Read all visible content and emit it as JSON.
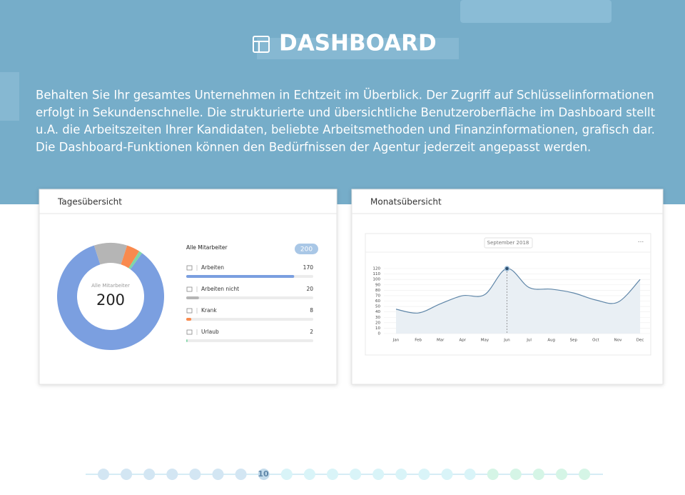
{
  "header": {
    "title": "DASHBOARD",
    "intro": [
      "Behalten Sie Ihr gesamtes Unternehmen in Echtzeit im Überblick. Der Zugriff auf Schlüsselinformationen",
      "erfolgt in Sekundenschnelle. Die strukturierte und übersichtliche Benutzeroberfläche im Dashboard stellt",
      "u.A. die Arbeitszeiten Ihrer Kandidaten, beliebte Arbeitsmethoden und Finanzinformationen, grafisch dar.",
      "Die Dashboard-Funktionen können den Bedürfnissen der Agentur jederzeit angepasst werden."
    ]
  },
  "day_card": {
    "title": "Tagesübersicht",
    "center_label": "Alle Mitarbeiter",
    "total_label": "Alle Mitarbeiter",
    "total": 200,
    "items": [
      {
        "name": "Arbeiten",
        "value": 170,
        "color": "#7b9fe0"
      },
      {
        "name": "Arbeiten nicht",
        "value": 20,
        "color": "#b5b5b5"
      },
      {
        "name": "Krank",
        "value": 8,
        "color": "#f98a4e"
      },
      {
        "name": "Urlaub",
        "value": 2,
        "color": "#7fd6a6"
      }
    ]
  },
  "month_card": {
    "title": "Monatsübersicht",
    "chart": {
      "type": "line",
      "title": "September 2018",
      "categories": [
        "Jan",
        "Feb",
        "Mar",
        "Apr",
        "May",
        "Jun",
        "Jul",
        "Aug",
        "Sep",
        "Oct",
        "Nov",
        "Dec"
      ],
      "values": [
        45,
        38,
        55,
        70,
        72,
        120,
        85,
        82,
        75,
        62,
        58,
        100
      ],
      "color": "#5f86a8",
      "ylim": [
        0,
        120
      ],
      "yticks": [
        0,
        10,
        20,
        30,
        40,
        50,
        60,
        70,
        80,
        90,
        100,
        110,
        120
      ],
      "grid": true
    }
  },
  "page_number": "10"
}
